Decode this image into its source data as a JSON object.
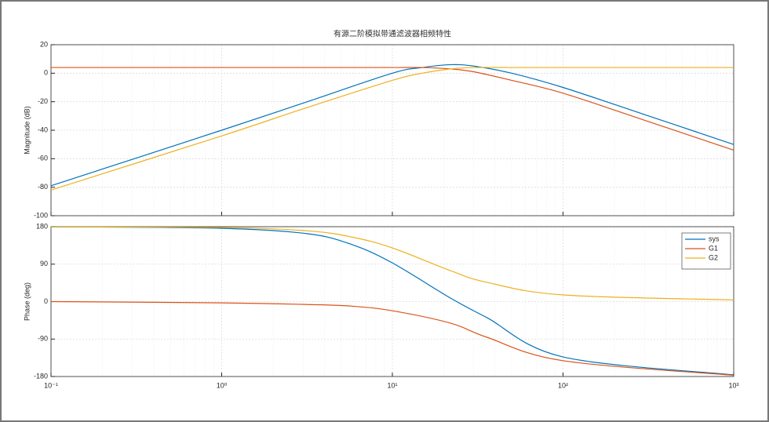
{
  "chart_data": [
    {
      "type": "line",
      "title": "有源二阶模拟带通滤波器相频特性",
      "y_label": "Magnitude (dB)",
      "x_scale": "log",
      "xlim": [
        0.1,
        1000
      ],
      "xticks": [
        0.1,
        1,
        10,
        100,
        1000
      ],
      "ylim": [
        -100,
        20
      ],
      "yticks": [
        -100,
        -80,
        -60,
        -40,
        -20,
        0,
        20
      ],
      "grid": true,
      "minor_grid": true,
      "x": [
        0.1,
        1,
        3,
        10,
        15,
        22,
        30,
        50,
        100,
        300,
        1000
      ],
      "series": [
        {
          "color": "#0072bd",
          "values": [
            -79,
            -40,
            -21,
            0,
            4,
            6,
            5,
            0,
            -10,
            -29,
            -50
          ]
        },
        {
          "color": "#d95319",
          "values": [
            4,
            4,
            4,
            4,
            4,
            3,
            1,
            -5,
            -14,
            -33,
            -54
          ]
        },
        {
          "color": "#edb120",
          "values": [
            -82,
            -44,
            -25,
            -5,
            0,
            3,
            4,
            4,
            4,
            4,
            4
          ]
        }
      ]
    },
    {
      "type": "line",
      "y_label": "Phase (deg)",
      "x_scale": "log",
      "xlim": [
        0.1,
        1000
      ],
      "xticks": [
        {
          "value": 0.1,
          "label": "10⁻¹"
        },
        {
          "value": 1,
          "label": "10⁰"
        },
        {
          "value": 10,
          "label": "10¹"
        },
        {
          "value": 100,
          "label": "10²"
        },
        {
          "value": 1000,
          "label": "10³"
        }
      ],
      "ylim": [
        -180,
        180
      ],
      "yticks": [
        -180,
        -90,
        0,
        90,
        180
      ],
      "grid": true,
      "minor_grid": true,
      "legend": "northeast",
      "x": [
        0.1,
        1,
        3.2,
        5.8,
        10,
        22,
        36,
        100,
        1000
      ],
      "series": [
        {
          "name": "sys",
          "color": "#0072bd",
          "values": [
            180,
            176,
            163,
            137,
            93,
            8,
            -39,
            -133,
            -176
          ]
        },
        {
          "name": "G1",
          "color": "#d95319",
          "values": [
            0,
            -3,
            -7,
            -11,
            -22,
            -52,
            -86,
            -142,
            -177
          ]
        },
        {
          "name": "G2",
          "color": "#edb120",
          "values": [
            179,
            178,
            170,
            155,
            129,
            74,
            46,
            16,
            4
          ]
        }
      ]
    }
  ]
}
